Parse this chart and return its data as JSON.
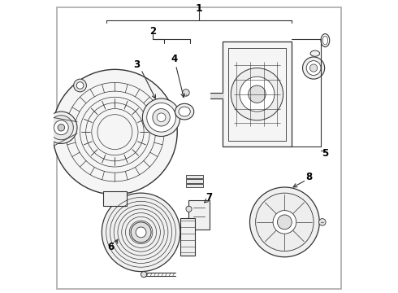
{
  "bg_color": "#ffffff",
  "border_color": "#aaaaaa",
  "line_color": "#333333",
  "label_color": "#000000"
}
